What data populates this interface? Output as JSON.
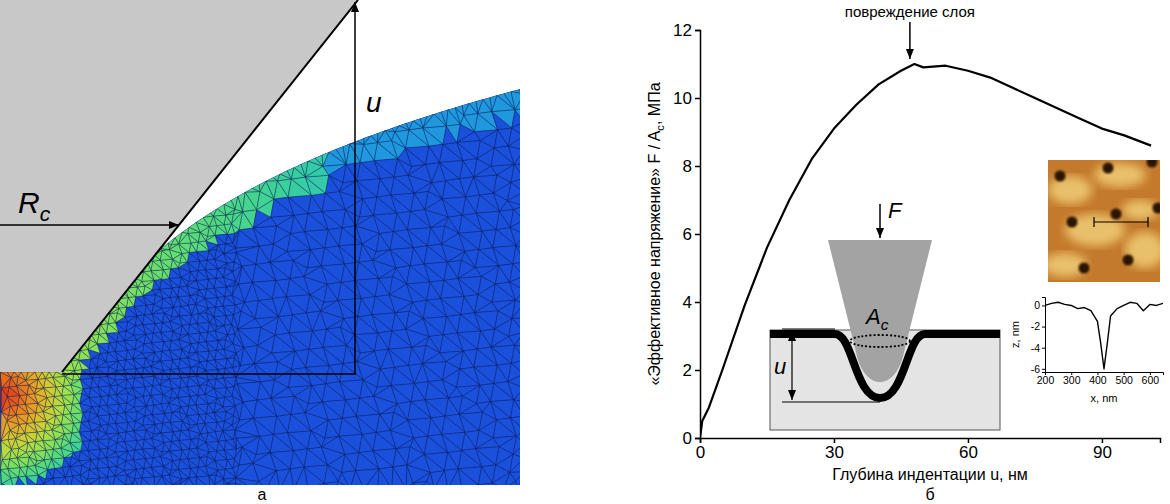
{
  "figure": {
    "panel_labels": [
      "а",
      "б"
    ]
  },
  "simulation": {
    "radius_label": {
      "text": "R",
      "subscript": "c"
    },
    "depth_label": "u"
  },
  "schematic": {
    "force_label": "F",
    "area_label": {
      "text": "A",
      "subscript": "c"
    },
    "depth_label": "u"
  },
  "chart_data": [
    {
      "type": "line",
      "xlabel": "Глубина индентации u, нм",
      "ylabel": {
        "text": "«Эффективное напряжение» F / A",
        "subscript": "c",
        "suffix": ", МПа"
      },
      "xlim": [
        0,
        103
      ],
      "ylim": [
        0,
        12
      ],
      "xticks": [
        0,
        30,
        60,
        90
      ],
      "yticks": [
        0,
        2,
        4,
        6,
        8,
        10,
        12
      ],
      "x": [
        0,
        0.5,
        2,
        5,
        10,
        15,
        20,
        25,
        30,
        35,
        40,
        45,
        48,
        50,
        55,
        60,
        65,
        70,
        75,
        80,
        85,
        90,
        95,
        101
      ],
      "values": [
        0,
        0.5,
        0.9,
        2.0,
        3.9,
        5.6,
        7.0,
        8.2,
        9.1,
        9.8,
        10.4,
        10.8,
        11.0,
        10.9,
        10.95,
        10.8,
        10.6,
        10.3,
        10.0,
        9.7,
        9.4,
        9.1,
        8.9,
        8.6
      ],
      "color": "#000000",
      "annotations": [
        {
          "text": "повреждение слоя",
          "x": 47,
          "y": 11
        }
      ]
    },
    {
      "type": "line",
      "xlabel": "x, nm",
      "ylabel": "z, nm",
      "xlim": [
        200,
        650
      ],
      "ylim": [
        -6.3,
        0.8
      ],
      "xticks": [
        200,
        300,
        400,
        500,
        600
      ],
      "yticks": [
        0,
        -2,
        -4,
        -6
      ],
      "x": [
        200,
        225,
        250,
        275,
        300,
        325,
        350,
        375,
        400,
        412,
        425,
        438,
        450,
        475,
        500,
        525,
        550,
        575,
        600,
        625,
        650
      ],
      "values": [
        0,
        0.2,
        0.3,
        0.1,
        0,
        -0.3,
        -0.2,
        -0.5,
        -1.5,
        -3.5,
        -6,
        -3.5,
        -1,
        -0.3,
        0,
        0.3,
        0.2,
        -0.5,
        0.1,
        0,
        0.2
      ],
      "color": "#000000"
    }
  ]
}
